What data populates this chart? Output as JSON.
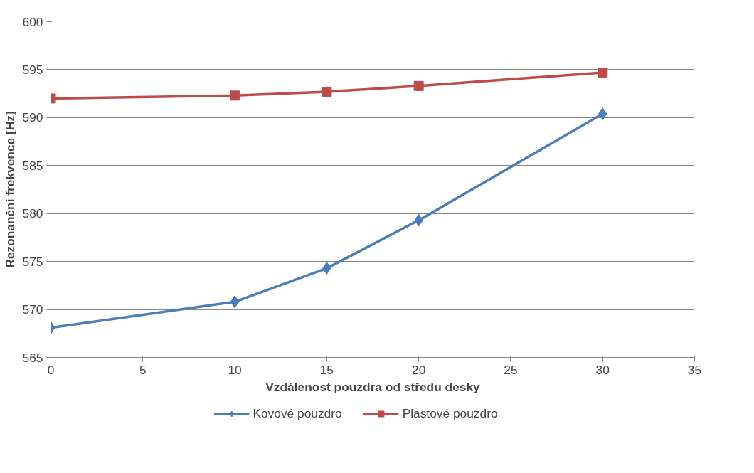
{
  "chart_data": {
    "type": "line",
    "xlabel": "Vzdálenost pouzdra od středu desky",
    "ylabel": "Rezonanční frekvence [Hz]",
    "x": [
      0,
      10,
      15,
      20,
      30
    ],
    "series": [
      {
        "name": "Kovové pouzdro",
        "color": "#4a7ebb",
        "marker": "diamond",
        "values": [
          568.1,
          570.8,
          574.3,
          579.3,
          590.4
        ]
      },
      {
        "name": "Plastové pouzdro",
        "color": "#be4b48",
        "marker": "square",
        "values": [
          592.0,
          592.3,
          592.7,
          593.3,
          594.7
        ]
      }
    ],
    "xlim": [
      0,
      35
    ],
    "xticks": [
      0,
      5,
      10,
      15,
      20,
      25,
      30,
      35
    ],
    "ylim": [
      565,
      600
    ],
    "yticks": [
      565,
      570,
      575,
      580,
      585,
      590,
      595,
      600
    ],
    "grid": "y",
    "legend": "bottom",
    "line_style": "solid"
  }
}
